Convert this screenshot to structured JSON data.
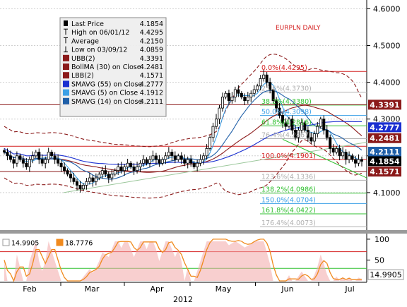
{
  "title": "EURPLN DAILY",
  "legend": [
    {
      "icon": "candlestick-icon",
      "label": "Last Price",
      "value": "4.1854",
      "color": "#000000"
    },
    {
      "icon": "high-tick-icon",
      "label": "High on 06/01/12",
      "value": "4.4295",
      "color": "#000000"
    },
    {
      "icon": "average-icon",
      "label": "Average",
      "value": "4.2150",
      "color": "#000000"
    },
    {
      "icon": "low-tick-icon",
      "label": "Low on 03/09/12",
      "value": "4.0859",
      "color": "#000000"
    },
    {
      "icon": "swatch-icon",
      "label": "UBB(2)",
      "value": "4.3391",
      "color": "#8b1a1a"
    },
    {
      "icon": "swatch-icon",
      "label": "BollMA (30) on Close",
      "value": "4.2481",
      "color": "#8b1a1a"
    },
    {
      "icon": "swatch-icon",
      "label": "LBB(2)",
      "value": "4.1571",
      "color": "#8b1a1a"
    },
    {
      "icon": "swatch-icon",
      "label": "SMAVG (55) on Close",
      "value": "4.2777",
      "color": "#1a2fd0"
    },
    {
      "icon": "swatch-icon",
      "label": "SMAVG (5) on Close",
      "value": "4.1912",
      "color": "#3ca0e6"
    },
    {
      "icon": "swatch-icon",
      "label": "SMAVG (14) on Close",
      "value": "4.2111",
      "color": "#1f5fa8"
    }
  ],
  "fib_levels": [
    {
      "label": "0.0%(4.4295)",
      "value": 4.4295,
      "color": "#d42020"
    },
    {
      "label": "23.6%(4.3730)",
      "value": 4.373,
      "color": "#b0b0b0"
    },
    {
      "label": "38.2%(4.3380)",
      "value": 4.338,
      "color": "#30c030"
    },
    {
      "label": "50.0%(4.3098)",
      "value": 4.3098,
      "color": "#3ca0e6"
    },
    {
      "label": "61.8%(4.2816)",
      "value": 4.2816,
      "color": "#30c030"
    },
    {
      "label": "76.4%(4.2467)",
      "value": 4.2467,
      "color": "#b0b0b0"
    },
    {
      "label": "100.0%(4.1901)",
      "value": 4.1901,
      "color": "#d42020"
    },
    {
      "label": "123.6%(4.1336)",
      "value": 4.1336,
      "color": "#b0b0b0"
    },
    {
      "label": "138.2%(4.0986)",
      "value": 4.0986,
      "color": "#30c030"
    },
    {
      "label": "150.0%(4.0704)",
      "value": 4.0704,
      "color": "#3ca0e6"
    },
    {
      "label": "161.8%(4.0422)",
      "value": 4.0422,
      "color": "#30c030"
    },
    {
      "label": "176.4%(4.0073)",
      "value": 4.0073,
      "color": "#b0b0b0"
    }
  ],
  "price_tags": [
    {
      "value": "4.3391",
      "num": 4.3391,
      "bg": "#8b1a1a",
      "fg": "#ffffff"
    },
    {
      "value": "4.2777",
      "num": 4.2777,
      "bg": "#1a2fd0",
      "fg": "#ffffff"
    },
    {
      "value": "4.2481",
      "num": 4.2481,
      "bg": "#8b1a1a",
      "fg": "#ffffff"
    },
    {
      "value": "4.2111",
      "num": 4.2111,
      "bg": "#1f5fa8",
      "fg": "#ffffff"
    },
    {
      "value": "4.1854",
      "num": 4.1854,
      "bg": "#000000",
      "fg": "#ffffff"
    },
    {
      "value": "4.1571",
      "num": 4.1571,
      "bg": "#8b1a1a",
      "fg": "#ffffff"
    }
  ],
  "sub_legend": [
    {
      "value": "14.9905",
      "color": "#ffffff",
      "border": "#999999"
    },
    {
      "value": "18.7776",
      "color": "#f08a1e",
      "border": "#f08a1e"
    }
  ],
  "sub_tag": {
    "value": "14.9905",
    "num": 14.9905
  },
  "x_axis": {
    "months": [
      "Feb",
      "Mar",
      "Apr",
      "May",
      "Jun",
      "Jul"
    ],
    "year": "2012"
  },
  "chart_data": {
    "type": "candlestick",
    "title": "EURPLN DAILY",
    "xlabel": "2012",
    "ylim": [
      4.0,
      4.62
    ],
    "yticks": [
      "4.6000",
      "4.5000",
      "4.4000",
      "4.3000",
      "4.2000",
      "4.1000"
    ],
    "ytick_values": [
      4.6,
      4.5,
      4.4,
      4.3,
      4.2,
      4.1
    ],
    "sub_ylim": [
      0,
      110
    ],
    "sub_yticks": [
      "100",
      "50"
    ],
    "sub_ytick_values": [
      100,
      50
    ],
    "closes": [
      4.21,
      4.2,
      4.19,
      4.18,
      4.2,
      4.19,
      4.18,
      4.17,
      4.19,
      4.2,
      4.21,
      4.19,
      4.18,
      4.19,
      4.21,
      4.2,
      4.19,
      4.18,
      4.17,
      4.16,
      4.15,
      4.14,
      4.13,
      4.12,
      4.11,
      4.12,
      4.13,
      4.14,
      4.13,
      4.14,
      4.15,
      4.16,
      4.15,
      4.14,
      4.15,
      4.16,
      4.17,
      4.16,
      4.17,
      4.18,
      4.17,
      4.16,
      4.17,
      4.18,
      4.19,
      4.18,
      4.19,
      4.2,
      4.19,
      4.18,
      4.19,
      4.2,
      4.21,
      4.2,
      4.19,
      4.2,
      4.19,
      4.18,
      4.19,
      4.18,
      4.17,
      4.18,
      4.19,
      4.2,
      4.22,
      4.25,
      4.28,
      4.3,
      4.33,
      4.36,
      4.37,
      4.35,
      4.36,
      4.38,
      4.37,
      4.36,
      4.35,
      4.36,
      4.37,
      4.38,
      4.39,
      4.41,
      4.42,
      4.4,
      4.38,
      4.35,
      4.33,
      4.31,
      4.29,
      4.28,
      4.3,
      4.27,
      4.25,
      4.27,
      4.29,
      4.27,
      4.25,
      4.24,
      4.26,
      4.28,
      4.3,
      4.27,
      4.25,
      4.22,
      4.21,
      4.22,
      4.2,
      4.21,
      4.19,
      4.2,
      4.19,
      4.18,
      4.19,
      4.1854
    ],
    "series": [
      {
        "name": "UBB(2)",
        "color": "#8b1a1a",
        "dashed": true
      },
      {
        "name": "BollMA (30) on Close",
        "color": "#8b1a1a",
        "dashed": false
      },
      {
        "name": "LBB(2)",
        "color": "#8b1a1a",
        "dashed": true
      },
      {
        "name": "SMAVG (55) on Close",
        "color": "#1a2fd0",
        "dashed": false
      },
      {
        "name": "SMAVG (5) on Close",
        "color": "#3ca0e6",
        "dashed": false
      },
      {
        "name": "SMAVG (14) on Close",
        "color": "#1f5fa8",
        "dashed": false
      }
    ],
    "sub_series": [
      {
        "name": "14.9905",
        "color": "#f2a8a8"
      },
      {
        "name": "18.7776",
        "color": "#f08a1e"
      }
    ]
  }
}
